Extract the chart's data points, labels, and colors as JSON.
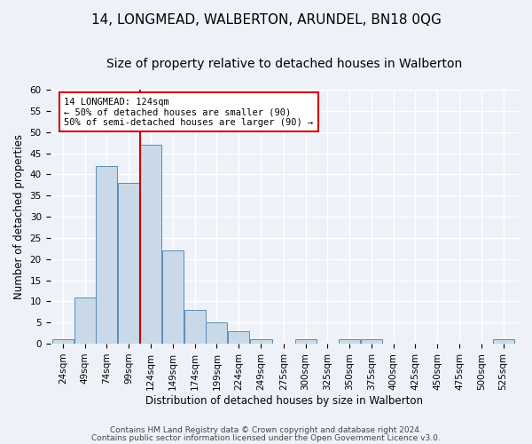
{
  "title1": "14, LONGMEAD, WALBERTON, ARUNDEL, BN18 0QG",
  "title2": "Size of property relative to detached houses in Walberton",
  "xlabel": "Distribution of detached houses by size in Walberton",
  "ylabel": "Number of detached properties",
  "bar_edges": [
    24,
    49,
    74,
    99,
    124,
    149,
    174,
    199,
    224,
    249,
    275,
    300,
    325,
    350,
    375,
    400,
    425,
    450,
    475,
    500,
    525,
    550
  ],
  "bar_heights": [
    1,
    11,
    42,
    38,
    47,
    22,
    8,
    5,
    3,
    1,
    0,
    1,
    0,
    1,
    1,
    0,
    0,
    0,
    0,
    0,
    1
  ],
  "bar_color": "#c9d9e8",
  "bar_edgecolor": "#5b8db8",
  "redline_x": 124,
  "annotation_title": "14 LONGMEAD: 124sqm",
  "annotation_line1": "← 50% of detached houses are smaller (90)",
  "annotation_line2": "50% of semi-detached houses are larger (90) →",
  "annotation_box_color": "#ffffff",
  "annotation_box_edgecolor": "#cc0000",
  "ylim": [
    0,
    60
  ],
  "yticks": [
    0,
    5,
    10,
    15,
    20,
    25,
    30,
    35,
    40,
    45,
    50,
    55,
    60
  ],
  "tick_labels": [
    "24sqm",
    "49sqm",
    "74sqm",
    "99sqm",
    "124sqm",
    "149sqm",
    "174sqm",
    "199sqm",
    "224sqm",
    "249sqm",
    "275sqm",
    "300sqm",
    "325sqm",
    "350sqm",
    "375sqm",
    "400sqm",
    "425sqm",
    "450sqm",
    "475sqm",
    "500sqm",
    "525sqm"
  ],
  "footnote1": "Contains HM Land Registry data © Crown copyright and database right 2024.",
  "footnote2": "Contains public sector information licensed under the Open Government Licence v3.0.",
  "bg_color": "#eef2f8",
  "plot_bg_color": "#eef2f8",
  "grid_color": "#ffffff",
  "title1_fontsize": 11,
  "title2_fontsize": 10,
  "xlabel_fontsize": 8.5,
  "ylabel_fontsize": 8.5,
  "tick_fontsize": 7.5,
  "footnote_fontsize": 6.5
}
